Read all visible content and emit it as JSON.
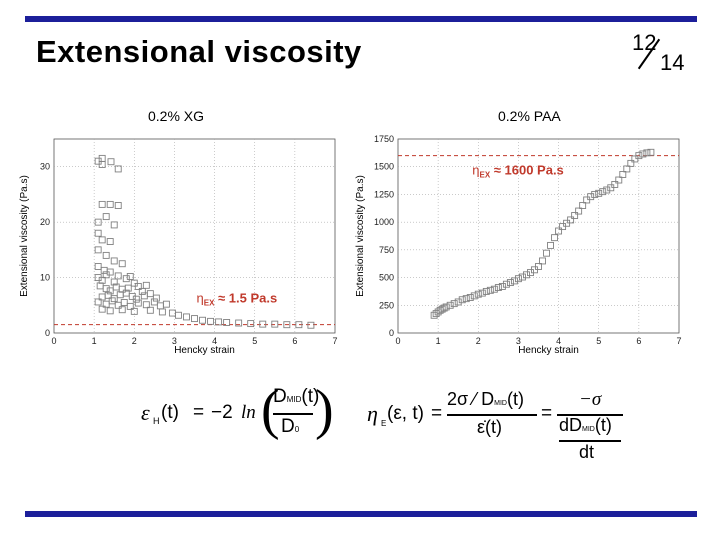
{
  "slide": {
    "title": "Extensional viscosity",
    "page_current": "12",
    "page_total": "14",
    "accent_color": "#1c1f9a"
  },
  "panels": [
    {
      "label": "0.2% XG"
    },
    {
      "label": "0.2% PAA"
    }
  ],
  "chart_data": [
    {
      "type": "scatter",
      "title": "",
      "xlabel": "Hencky strain",
      "ylabel": "Extensional viscosity (Pa.s)",
      "xlim": [
        0,
        7
      ],
      "ylim": [
        0,
        35
      ],
      "xticks": [
        0,
        1,
        2,
        3,
        4,
        5,
        6,
        7
      ],
      "yticks": [
        0,
        10,
        20,
        30
      ],
      "grid": true,
      "reference_line": {
        "y": 1.5,
        "color": "#c0392b"
      },
      "annotation": {
        "text_symbol": "η",
        "text_sub": "EX",
        "text_value": "≈ 1.5 Pa.s",
        "color": "#c0392b"
      },
      "series": [
        {
          "marker": "open-square",
          "color": "#808080",
          "points": [
            [
              1.1,
              31.0
            ],
            [
              1.2,
              31.5
            ],
            [
              1.2,
              30.4
            ],
            [
              1.42,
              30.9
            ],
            [
              1.6,
              29.6
            ],
            [
              1.2,
              23.2
            ],
            [
              1.4,
              23.2
            ],
            [
              1.6,
              23.0
            ],
            [
              1.1,
              20.0
            ],
            [
              1.3,
              21.0
            ],
            [
              1.5,
              19.5
            ],
            [
              1.1,
              18.0
            ],
            [
              1.2,
              16.8
            ],
            [
              1.4,
              16.5
            ],
            [
              1.1,
              15.0
            ],
            [
              1.3,
              14.0
            ],
            [
              1.5,
              13.0
            ],
            [
              1.1,
              12.0
            ],
            [
              1.25,
              11.3
            ],
            [
              1.4,
              11.0
            ],
            [
              1.7,
              12.5
            ],
            [
              1.1,
              10.0
            ],
            [
              1.2,
              9.5
            ],
            [
              1.3,
              10.5
            ],
            [
              1.5,
              9.2
            ],
            [
              1.6,
              10.3
            ],
            [
              1.8,
              9.8
            ],
            [
              1.9,
              10.2
            ],
            [
              1.15,
              8.5
            ],
            [
              1.3,
              8.0
            ],
            [
              1.4,
              7.6
            ],
            [
              1.55,
              8.3
            ],
            [
              1.7,
              7.9
            ],
            [
              1.85,
              8.1
            ],
            [
              2.0,
              9.0
            ],
            [
              2.1,
              8.4
            ],
            [
              2.2,
              7.5
            ],
            [
              2.3,
              8.6
            ],
            [
              1.2,
              6.5
            ],
            [
              1.35,
              6.8
            ],
            [
              1.5,
              6.2
            ],
            [
              1.65,
              6.9
            ],
            [
              1.8,
              7.2
            ],
            [
              1.95,
              6.6
            ],
            [
              2.05,
              6.1
            ],
            [
              2.25,
              6.7
            ],
            [
              2.4,
              7.1
            ],
            [
              2.55,
              6.3
            ],
            [
              1.1,
              5.6
            ],
            [
              1.3,
              5.2
            ],
            [
              1.45,
              5.8
            ],
            [
              1.6,
              5.0
            ],
            [
              1.75,
              5.5
            ],
            [
              1.9,
              4.8
            ],
            [
              2.1,
              5.4
            ],
            [
              2.3,
              5.1
            ],
            [
              2.5,
              5.6
            ],
            [
              2.65,
              4.9
            ],
            [
              2.8,
              5.2
            ],
            [
              1.2,
              4.3
            ],
            [
              1.4,
              4.0
            ],
            [
              1.7,
              4.2
            ],
            [
              2.0,
              3.9
            ],
            [
              2.4,
              4.1
            ],
            [
              2.7,
              3.8
            ],
            [
              2.95,
              3.6
            ],
            [
              3.1,
              3.2
            ],
            [
              3.3,
              2.9
            ],
            [
              3.5,
              2.6
            ],
            [
              3.7,
              2.3
            ],
            [
              3.9,
              2.1
            ],
            [
              4.1,
              2.0
            ],
            [
              4.3,
              1.9
            ],
            [
              4.6,
              1.8
            ],
            [
              4.9,
              1.7
            ],
            [
              5.2,
              1.6
            ],
            [
              5.5,
              1.6
            ],
            [
              5.8,
              1.5
            ],
            [
              6.1,
              1.5
            ],
            [
              6.4,
              1.4
            ]
          ]
        }
      ]
    },
    {
      "type": "scatter",
      "title": "",
      "xlabel": "Hencky strain",
      "ylabel": "Extensional viscosity (Pa.s)",
      "xlim": [
        0,
        7
      ],
      "ylim": [
        0,
        1750
      ],
      "xticks": [
        0,
        1,
        2,
        3,
        4,
        5,
        6,
        7
      ],
      "yticks": [
        0,
        250,
        500,
        750,
        1000,
        1250,
        1500,
        1750
      ],
      "grid": true,
      "reference_line": {
        "y": 1600,
        "color": "#c0392b"
      },
      "annotation": {
        "text_symbol": "η",
        "text_sub": "EX",
        "text_value": "≈ 1600 Pa.s",
        "color": "#c0392b"
      },
      "series": [
        {
          "marker": "open-square",
          "color": "#808080",
          "points": [
            [
              0.9,
              160
            ],
            [
              0.95,
              175
            ],
            [
              1.0,
              190
            ],
            [
              1.05,
              205
            ],
            [
              1.1,
              215
            ],
            [
              1.15,
              225
            ],
            [
              1.2,
              235
            ],
            [
              1.3,
              250
            ],
            [
              1.4,
              265
            ],
            [
              1.5,
              280
            ],
            [
              1.6,
              300
            ],
            [
              1.7,
              310
            ],
            [
              1.8,
              320
            ],
            [
              1.9,
              335
            ],
            [
              2.0,
              350
            ],
            [
              2.1,
              360
            ],
            [
              2.2,
              375
            ],
            [
              2.3,
              385
            ],
            [
              2.4,
              395
            ],
            [
              2.5,
              410
            ],
            [
              2.6,
              420
            ],
            [
              2.7,
              440
            ],
            [
              2.8,
              455
            ],
            [
              2.9,
              470
            ],
            [
              3.0,
              490
            ],
            [
              3.1,
              505
            ],
            [
              3.2,
              525
            ],
            [
              3.3,
              545
            ],
            [
              3.4,
              570
            ],
            [
              3.5,
              600
            ],
            [
              3.6,
              650
            ],
            [
              3.7,
              720
            ],
            [
              3.8,
              790
            ],
            [
              3.9,
              860
            ],
            [
              4.0,
              920
            ],
            [
              4.1,
              960
            ],
            [
              4.2,
              990
            ],
            [
              4.3,
              1020
            ],
            [
              4.4,
              1060
            ],
            [
              4.5,
              1100
            ],
            [
              4.6,
              1150
            ],
            [
              4.7,
              1200
            ],
            [
              4.8,
              1230
            ],
            [
              4.9,
              1250
            ],
            [
              5.0,
              1260
            ],
            [
              5.1,
              1275
            ],
            [
              5.2,
              1290
            ],
            [
              5.3,
              1310
            ],
            [
              5.4,
              1340
            ],
            [
              5.5,
              1380
            ],
            [
              5.6,
              1430
            ],
            [
              5.7,
              1480
            ],
            [
              5.8,
              1530
            ],
            [
              5.9,
              1570
            ],
            [
              6.0,
              1600
            ],
            [
              6.1,
              1615
            ],
            [
              6.2,
              1625
            ],
            [
              6.3,
              1630
            ]
          ]
        }
      ]
    }
  ],
  "equations": {
    "strain": {
      "lhs_symbol": "ε",
      "lhs_sub": "H",
      "lhs_arg": "(t)",
      "equals": "=",
      "coef": "−2",
      "func": "ln",
      "numerator": "D",
      "numerator_sub": "MID",
      "numerator_arg": "(t)",
      "denominator": "D",
      "denominator_sub": "0"
    },
    "viscosity": {
      "lhs_symbol": "η",
      "lhs_sub": "E",
      "lhs_args": "(ε, t)",
      "equals1": "=",
      "frac1_num": "2σ ⁄ D",
      "frac1_num_sub": "MID",
      "frac1_num_arg": "(t)",
      "frac1_den": "ε̇(t)",
      "equals2": "=",
      "frac2_num": "−σ",
      "frac2_den_top": "dD",
      "frac2_den_top_sub": "MID",
      "frac2_den_top_arg": "(t)",
      "frac2_den_bottom": "dt"
    }
  }
}
